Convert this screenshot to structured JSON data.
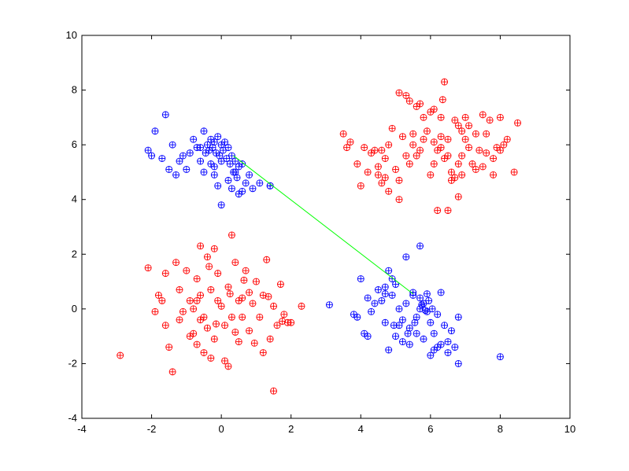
{
  "chart_data": {
    "type": "scatter",
    "title": "",
    "xlabel": "",
    "ylabel": "",
    "xlim": [
      -4,
      10
    ],
    "ylim": [
      -4,
      10
    ],
    "xticks": [
      -4,
      -2,
      0,
      2,
      4,
      6,
      8,
      10
    ],
    "yticks": [
      -4,
      -2,
      0,
      2,
      4,
      6,
      8,
      10
    ],
    "xtick_labels": [
      "-4",
      "-2",
      "0",
      "2",
      "4",
      "6",
      "8",
      "10"
    ],
    "ytick_labels": [
      "-4",
      "-2",
      "0",
      "2",
      "4",
      "6",
      "8",
      "10"
    ],
    "grid": false,
    "legend": "none",
    "series": [
      {
        "color": "#0000ff",
        "marker": "circle",
        "points": [
          [
            -2.1,
            5.8
          ],
          [
            -2.0,
            5.6
          ],
          [
            -1.9,
            6.5
          ],
          [
            -1.7,
            5.5
          ],
          [
            -1.6,
            7.1
          ],
          [
            -1.5,
            5.1
          ],
          [
            -1.4,
            6.0
          ],
          [
            -1.3,
            4.9
          ],
          [
            -1.2,
            5.4
          ],
          [
            -1.1,
            5.6
          ],
          [
            -1.0,
            5.1
          ],
          [
            -0.9,
            5.7
          ],
          [
            -0.8,
            6.2
          ],
          [
            -0.7,
            5.9
          ],
          [
            -0.6,
            5.4
          ],
          [
            -0.5,
            6.5
          ],
          [
            -0.4,
            6.0
          ],
          [
            -0.35,
            5.8
          ],
          [
            -0.3,
            6.2
          ],
          [
            -0.25,
            5.9
          ],
          [
            -0.2,
            6.1
          ],
          [
            -0.15,
            5.7
          ],
          [
            -0.1,
            6.3
          ],
          [
            -0.05,
            5.6
          ],
          [
            0.0,
            6.0
          ],
          [
            0.05,
            5.8
          ],
          [
            0.1,
            6.1
          ],
          [
            0.15,
            5.5
          ],
          [
            0.2,
            5.9
          ],
          [
            0.25,
            5.3
          ],
          [
            0.3,
            5.6
          ],
          [
            0.35,
            5.0
          ],
          [
            0.4,
            5.4
          ],
          [
            0.45,
            4.8
          ],
          [
            0.5,
            5.2
          ],
          [
            0.6,
            4.3
          ],
          [
            0.7,
            4.6
          ],
          [
            0.8,
            4.9
          ],
          [
            -0.3,
            5.3
          ],
          [
            -0.2,
            4.9
          ],
          [
            -0.1,
            4.5
          ],
          [
            0.0,
            3.8
          ],
          [
            0.3,
            4.4
          ],
          [
            0.5,
            4.2
          ],
          [
            0.9,
            4.4
          ],
          [
            1.1,
            4.6
          ],
          [
            1.4,
            4.5
          ],
          [
            -0.5,
            5.0
          ],
          [
            -0.2,
            5.2
          ],
          [
            0.0,
            5.4
          ],
          [
            0.2,
            4.7
          ],
          [
            0.4,
            5.0
          ],
          [
            0.6,
            5.3
          ],
          [
            -0.6,
            5.9
          ],
          [
            -0.45,
            5.7
          ],
          [
            4.9,
            1.1
          ],
          [
            5.0,
            0.9
          ],
          [
            4.7,
            0.8
          ],
          [
            4.6,
            0.3
          ],
          [
            4.5,
            0.7
          ],
          [
            4.4,
            0.2
          ],
          [
            4.3,
            -0.1
          ],
          [
            4.2,
            0.4
          ],
          [
            4.0,
            1.1
          ],
          [
            3.9,
            -0.3
          ],
          [
            3.8,
            -0.2
          ],
          [
            4.1,
            -0.9
          ],
          [
            4.2,
            -1.0
          ],
          [
            4.7,
            -0.5
          ],
          [
            4.8,
            -1.5
          ],
          [
            4.9,
            0.5
          ],
          [
            5.1,
            0.0
          ],
          [
            5.2,
            -0.4
          ],
          [
            5.3,
            0.2
          ],
          [
            5.4,
            -0.7
          ],
          [
            5.5,
            0.5
          ],
          [
            5.6,
            -0.3
          ],
          [
            5.7,
            0.0
          ],
          [
            5.8,
            0.2
          ],
          [
            5.9,
            -0.1
          ],
          [
            6.0,
            -0.5
          ],
          [
            6.1,
            -0.9
          ],
          [
            6.2,
            -0.2
          ],
          [
            6.3,
            -1.3
          ],
          [
            6.4,
            -0.6
          ],
          [
            6.5,
            -1.2
          ],
          [
            6.6,
            -0.8
          ],
          [
            6.7,
            -1.4
          ],
          [
            6.8,
            -0.3
          ],
          [
            5.2,
            -1.2
          ],
          [
            5.4,
            -1.3
          ],
          [
            5.6,
            -0.9
          ],
          [
            5.8,
            -1.1
          ],
          [
            6.0,
            -1.7
          ],
          [
            6.1,
            -1.5
          ],
          [
            6.2,
            -1.4
          ],
          [
            5.0,
            -1.0
          ],
          [
            4.95,
            -0.6
          ],
          [
            5.3,
            1.9
          ],
          [
            5.5,
            0.6
          ],
          [
            5.7,
            0.4
          ],
          [
            5.75,
            0.15
          ],
          [
            5.85,
            -0.05
          ],
          [
            5.95,
            0.3
          ],
          [
            6.05,
            0.0
          ],
          [
            6.5,
            -1.6
          ],
          [
            6.8,
            -2.0
          ],
          [
            5.7,
            2.3
          ],
          [
            5.1,
            -0.6
          ],
          [
            5.35,
            -0.9
          ],
          [
            5.55,
            -0.5
          ],
          [
            4.7,
            0.55
          ],
          [
            3.1,
            0.15
          ],
          [
            4.8,
            1.4
          ],
          [
            5.9,
            0.55
          ],
          [
            6.3,
            0.6
          ],
          [
            8.0,
            -1.75
          ],
          [
            1.4,
            4.5
          ]
        ]
      },
      {
        "color": "#ff0000",
        "marker": "circle",
        "points": [
          [
            3.5,
            6.4
          ],
          [
            3.6,
            5.9
          ],
          [
            3.7,
            6.1
          ],
          [
            3.9,
            5.3
          ],
          [
            4.0,
            4.5
          ],
          [
            4.1,
            5.9
          ],
          [
            4.3,
            5.7
          ],
          [
            4.4,
            5.8
          ],
          [
            4.5,
            5.2
          ],
          [
            4.6,
            5.8
          ],
          [
            4.7,
            4.8
          ],
          [
            4.8,
            6.0
          ],
          [
            4.9,
            6.6
          ],
          [
            5.0,
            5.1
          ],
          [
            5.1,
            4.7
          ],
          [
            5.2,
            6.3
          ],
          [
            5.3,
            5.6
          ],
          [
            5.4,
            5.3
          ],
          [
            5.5,
            6.0
          ],
          [
            5.6,
            5.6
          ],
          [
            5.7,
            5.8
          ],
          [
            5.8,
            6.2
          ],
          [
            5.9,
            6.5
          ],
          [
            6.0,
            4.9
          ],
          [
            6.1,
            5.3
          ],
          [
            6.2,
            5.8
          ],
          [
            6.3,
            6.3
          ],
          [
            6.4,
            5.5
          ],
          [
            6.5,
            5.6
          ],
          [
            6.6,
            5.0
          ],
          [
            6.7,
            4.8
          ],
          [
            6.8,
            5.3
          ],
          [
            6.9,
            5.6
          ],
          [
            7.0,
            6.2
          ],
          [
            7.1,
            6.7
          ],
          [
            7.2,
            5.3
          ],
          [
            7.3,
            5.1
          ],
          [
            7.4,
            5.8
          ],
          [
            7.5,
            5.2
          ],
          [
            7.6,
            6.4
          ],
          [
            7.7,
            6.9
          ],
          [
            7.8,
            5.5
          ],
          [
            7.9,
            5.9
          ],
          [
            8.0,
            5.8
          ],
          [
            8.1,
            6.0
          ],
          [
            8.4,
            5.0
          ],
          [
            5.3,
            7.8
          ],
          [
            5.4,
            7.6
          ],
          [
            5.6,
            7.4
          ],
          [
            5.7,
            7.5
          ],
          [
            5.8,
            7.0
          ],
          [
            6.0,
            7.2
          ],
          [
            6.1,
            7.3
          ],
          [
            6.3,
            7.0
          ],
          [
            6.4,
            8.3
          ],
          [
            6.7,
            6.9
          ],
          [
            6.8,
            6.7
          ],
          [
            6.6,
            4.7
          ],
          [
            6.9,
            4.9
          ],
          [
            5.1,
            7.9
          ],
          [
            4.7,
            5.5
          ],
          [
            4.6,
            4.6
          ],
          [
            4.8,
            4.3
          ],
          [
            6.2,
            3.6
          ],
          [
            6.8,
            4.1
          ],
          [
            6.5,
            3.6
          ],
          [
            5.1,
            4.0
          ],
          [
            7.0,
            7.0
          ],
          [
            7.5,
            7.1
          ],
          [
            7.3,
            6.4
          ],
          [
            8.2,
            6.2
          ],
          [
            8.5,
            6.8
          ],
          [
            6.3,
            5.9
          ],
          [
            6.5,
            6.2
          ],
          [
            6.9,
            6.5
          ],
          [
            7.1,
            5.9
          ],
          [
            7.6,
            5.7
          ],
          [
            7.8,
            4.9
          ],
          [
            6.1,
            6.1
          ],
          [
            5.5,
            6.4
          ],
          [
            4.2,
            5.0
          ],
          [
            4.5,
            4.9
          ],
          [
            6.35,
            7.65
          ],
          [
            8.0,
            7.0
          ],
          [
            -2.9,
            -1.7
          ],
          [
            -2.1,
            1.5
          ],
          [
            -1.8,
            0.5
          ],
          [
            -1.7,
            0.3
          ],
          [
            -1.6,
            -0.6
          ],
          [
            -1.5,
            -1.4
          ],
          [
            -1.4,
            -2.3
          ],
          [
            -1.3,
            1.7
          ],
          [
            -1.2,
            0.7
          ],
          [
            -1.1,
            -0.1
          ],
          [
            -1.0,
            1.4
          ],
          [
            -0.9,
            0.3
          ],
          [
            -0.8,
            -0.9
          ],
          [
            -0.7,
            1.1
          ],
          [
            -0.6,
            0.5
          ],
          [
            -0.5,
            -0.3
          ],
          [
            -0.4,
            1.9
          ],
          [
            -0.3,
            0.7
          ],
          [
            -0.2,
            -1.1
          ],
          [
            -0.1,
            1.3
          ],
          [
            0.0,
            0.1
          ],
          [
            0.1,
            -0.6
          ],
          [
            0.2,
            0.8
          ],
          [
            0.3,
            -0.3
          ],
          [
            0.4,
            1.7
          ],
          [
            0.5,
            -1.2
          ],
          [
            0.6,
            0.4
          ],
          [
            0.7,
            1.4
          ],
          [
            0.8,
            -0.8
          ],
          [
            0.9,
            0.2
          ],
          [
            1.0,
            1.0
          ],
          [
            1.1,
            -0.3
          ],
          [
            1.2,
            0.5
          ],
          [
            1.3,
            1.8
          ],
          [
            1.4,
            -1.1
          ],
          [
            1.5,
            0.1
          ],
          [
            1.6,
            -0.6
          ],
          [
            1.7,
            0.9
          ],
          [
            1.8,
            -0.2
          ],
          [
            1.9,
            -0.5
          ],
          [
            2.0,
            -0.5
          ],
          [
            2.3,
            0.1
          ],
          [
            0.1,
            -1.9
          ],
          [
            0.3,
            2.7
          ],
          [
            1.5,
            -3.0
          ],
          [
            -0.7,
            -1.3
          ],
          [
            -0.5,
            -1.6
          ],
          [
            -0.3,
            -1.8
          ],
          [
            -0.1,
            0.3
          ],
          [
            0.2,
            -2.1
          ],
          [
            -0.6,
            -0.4
          ],
          [
            -0.8,
            0.0
          ],
          [
            -1.9,
            -0.1
          ],
          [
            0.6,
            -0.3
          ],
          [
            0.8,
            0.6
          ],
          [
            1.2,
            -1.6
          ],
          [
            -0.2,
            2.2
          ],
          [
            0.5,
            0.3
          ],
          [
            -0.4,
            -0.7
          ],
          [
            -0.9,
            -1.0
          ],
          [
            -1.2,
            -0.4
          ],
          [
            -1.6,
            1.3
          ],
          [
            -0.6,
            2.3
          ],
          [
            -0.35,
            1.55
          ],
          [
            0.65,
            1.05
          ],
          [
            1.35,
            0.45
          ],
          [
            0.95,
            -1.25
          ],
          [
            -0.15,
            -0.55
          ],
          [
            0.25,
            0.55
          ],
          [
            -0.7,
            0.3
          ],
          [
            0.4,
            -0.85
          ],
          [
            1.75,
            -0.45
          ]
        ]
      }
    ],
    "line": {
      "color": "#00ff00",
      "points": [
        [
          0.35,
          5.6
        ],
        [
          5.5,
          0.55
        ]
      ]
    }
  }
}
